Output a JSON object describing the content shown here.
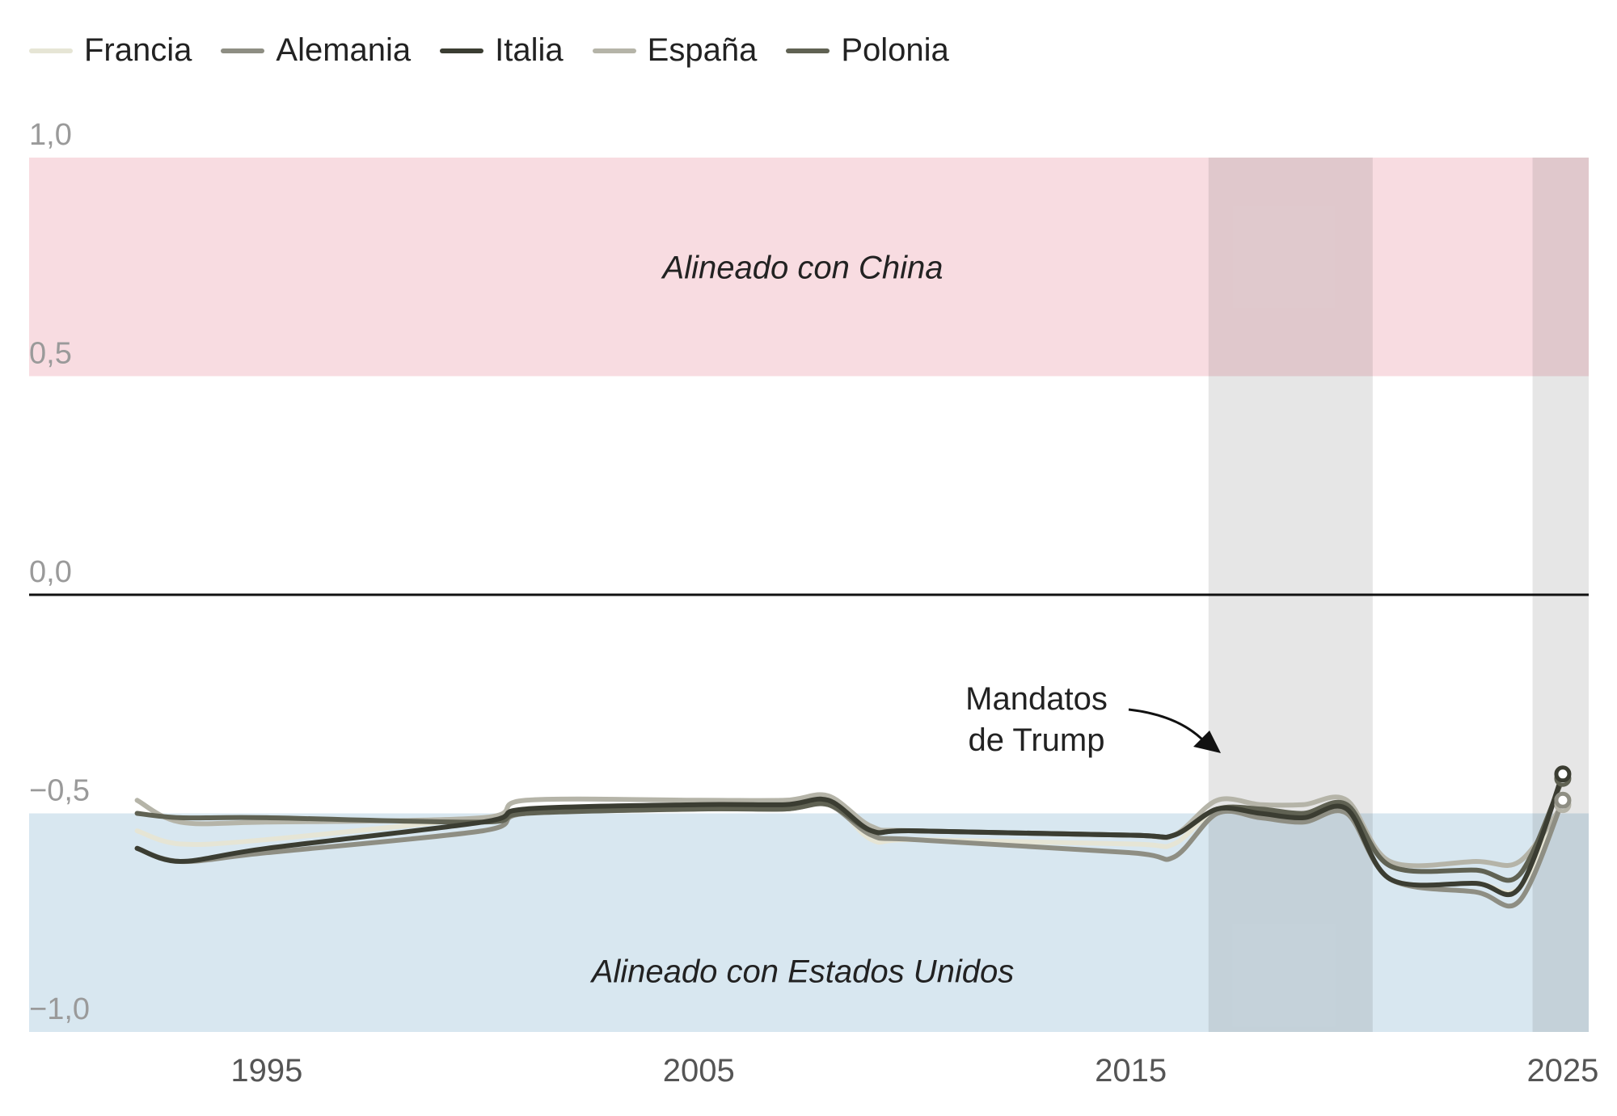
{
  "chart_data": {
    "type": "line",
    "xlim": [
      1989.5,
      2025.6
    ],
    "ylim": [
      -1.07,
      1.0
    ],
    "x_ticks": [
      1995,
      2005,
      2015,
      2025
    ],
    "x_tick_labels": [
      "1995",
      "2005",
      "2015",
      "2025"
    ],
    "y_ticks": [
      1.0,
      0.5,
      0.0,
      -0.5,
      -1.0
    ],
    "y_tick_labels": [
      "1,0",
      "0,5",
      "0,0",
      "−0,5",
      "−1,0"
    ],
    "legend_position": "top-left",
    "regions": [
      {
        "label": "Alineado con China",
        "y_from": 0.5,
        "y_to": 1.0,
        "color": "#f8dce1"
      },
      {
        "label": "Alineado con Estados Unidos",
        "y_from": -1.0,
        "y_to": -0.5,
        "color": "#d8e7f0"
      }
    ],
    "highlight_periods": [
      {
        "x_from": 2016.8,
        "x_to": 2020.6
      },
      {
        "x_from": 2024.3,
        "x_to": 2025.7
      }
    ],
    "annotation": {
      "line1": "Mandatos",
      "line2": "de Trump"
    },
    "series": [
      {
        "name": "Francia",
        "color": "#e6e5d5",
        "x": [
          1992,
          1993,
          1995,
          2000,
          2001,
          2005,
          2007,
          2008,
          2009,
          2010,
          2015,
          2016,
          2017,
          2018,
          2019,
          2020,
          2021,
          2023,
          2024,
          2025
        ],
        "y": [
          -0.54,
          -0.57,
          -0.56,
          -0.51,
          -0.5,
          -0.48,
          -0.48,
          -0.47,
          -0.56,
          -0.56,
          -0.57,
          -0.57,
          -0.49,
          -0.5,
          -0.51,
          -0.49,
          -0.65,
          -0.66,
          -0.67,
          -0.47
        ]
      },
      {
        "name": "Alemania",
        "color": "#8e8e83",
        "x": [
          1992,
          1993,
          1995,
          2000,
          2001,
          2005,
          2007,
          2008,
          2009,
          2010,
          2015,
          2016,
          2017,
          2018,
          2019,
          2020,
          2021,
          2023,
          2024,
          2025
        ],
        "y": [
          -0.58,
          -0.61,
          -0.59,
          -0.54,
          -0.5,
          -0.49,
          -0.49,
          -0.48,
          -0.55,
          -0.56,
          -0.59,
          -0.6,
          -0.5,
          -0.51,
          -0.52,
          -0.5,
          -0.65,
          -0.68,
          -0.7,
          -0.47
        ]
      },
      {
        "name": "Italia",
        "color": "#3b3d32",
        "x": [
          1992,
          1993,
          1995,
          2000,
          2001,
          2005,
          2007,
          2008,
          2009,
          2010,
          2015,
          2016,
          2017,
          2018,
          2019,
          2020,
          2021,
          2023,
          2024,
          2025
        ],
        "y": [
          -0.58,
          -0.61,
          -0.58,
          -0.52,
          -0.49,
          -0.48,
          -0.48,
          -0.47,
          -0.54,
          -0.54,
          -0.55,
          -0.55,
          -0.49,
          -0.5,
          -0.51,
          -0.49,
          -0.65,
          -0.66,
          -0.67,
          -0.41
        ]
      },
      {
        "name": "España",
        "color": "#b5b4a8",
        "x": [
          1992,
          1993,
          1995,
          2000,
          2001,
          2005,
          2007,
          2008,
          2009,
          2010,
          2015,
          2016,
          2017,
          2018,
          2019,
          2020,
          2021,
          2023,
          2024,
          2025
        ],
        "y": [
          -0.47,
          -0.52,
          -0.52,
          -0.51,
          -0.47,
          -0.47,
          -0.47,
          -0.46,
          -0.53,
          -0.54,
          -0.55,
          -0.55,
          -0.47,
          -0.48,
          -0.48,
          -0.47,
          -0.61,
          -0.61,
          -0.61,
          -0.48
        ]
      },
      {
        "name": "Polonia",
        "color": "#606253",
        "x": [
          1992,
          1993,
          1995,
          2000,
          2001,
          2005,
          2007,
          2008,
          2009,
          2010,
          2015,
          2016,
          2017,
          2018,
          2019,
          2020,
          2021,
          2023,
          2024,
          2025
        ],
        "y": [
          -0.5,
          -0.51,
          -0.51,
          -0.52,
          -0.5,
          -0.49,
          -0.49,
          -0.48,
          -0.54,
          -0.54,
          -0.55,
          -0.55,
          -0.49,
          -0.49,
          -0.5,
          -0.48,
          -0.62,
          -0.63,
          -0.64,
          -0.42
        ]
      }
    ]
  }
}
